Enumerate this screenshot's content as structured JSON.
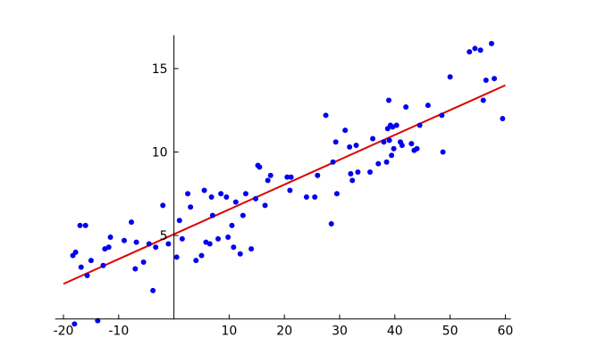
{
  "chart_data": {
    "type": "scatter",
    "title": "",
    "xlabel": "",
    "ylabel": "",
    "xlim": [
      -21.5,
      61
    ],
    "ylim": [
      0,
      17
    ],
    "grid": false,
    "legend": "none",
    "x_ticks": [
      -20,
      -10,
      10,
      20,
      30,
      40,
      50,
      60
    ],
    "x_tick_labels": [
      "-20",
      "-10",
      "10",
      "20",
      "30",
      "40",
      "50",
      "60"
    ],
    "y_ticks": [
      5,
      10,
      15
    ],
    "y_tick_labels": [
      "5",
      "10",
      "15"
    ],
    "colors": {
      "points": "#0000ee",
      "fit_line": "#dd0000",
      "axes": "#000000"
    },
    "fit_line": {
      "x": [
        -20,
        60
      ],
      "y": [
        2.1,
        14.0
      ]
    },
    "points": [
      [
        -18.3,
        3.8
      ],
      [
        -17.8,
        4.0
      ],
      [
        -17.0,
        5.6
      ],
      [
        -16.8,
        3.1
      ],
      [
        -16.0,
        5.6
      ],
      [
        -15.7,
        2.6
      ],
      [
        -15.0,
        3.5
      ],
      [
        -13.8,
        -0.1
      ],
      [
        -18.0,
        -0.3
      ],
      [
        -12.8,
        3.2
      ],
      [
        -12.5,
        4.2
      ],
      [
        -11.8,
        4.3
      ],
      [
        -11.5,
        4.9
      ],
      [
        -9.0,
        4.7
      ],
      [
        -7.7,
        5.8
      ],
      [
        -7.0,
        3.0
      ],
      [
        -6.8,
        4.6
      ],
      [
        -5.5,
        3.4
      ],
      [
        -4.5,
        4.5
      ],
      [
        -3.8,
        1.7
      ],
      [
        -3.3,
        4.3
      ],
      [
        -2.0,
        6.8
      ],
      [
        -1.0,
        4.5
      ],
      [
        0.5,
        3.7
      ],
      [
        1.0,
        5.9
      ],
      [
        1.5,
        4.8
      ],
      [
        2.5,
        7.5
      ],
      [
        3.0,
        6.7
      ],
      [
        4.0,
        3.5
      ],
      [
        5.0,
        3.8
      ],
      [
        5.5,
        7.7
      ],
      [
        5.8,
        4.6
      ],
      [
        6.5,
        4.5
      ],
      [
        6.8,
        7.3
      ],
      [
        7.0,
        6.2
      ],
      [
        8.0,
        4.8
      ],
      [
        8.5,
        7.5
      ],
      [
        9.5,
        7.3
      ],
      [
        9.8,
        4.9
      ],
      [
        10.5,
        5.6
      ],
      [
        10.8,
        4.3
      ],
      [
        11.2,
        7.0
      ],
      [
        12.0,
        3.9
      ],
      [
        12.5,
        6.2
      ],
      [
        13.0,
        7.5
      ],
      [
        14.0,
        4.2
      ],
      [
        14.8,
        7.2
      ],
      [
        15.2,
        9.2
      ],
      [
        15.5,
        9.1
      ],
      [
        16.5,
        6.8
      ],
      [
        17.0,
        8.3
      ],
      [
        17.5,
        8.6
      ],
      [
        20.5,
        8.5
      ],
      [
        21.0,
        7.7
      ],
      [
        21.2,
        8.5
      ],
      [
        24.0,
        7.3
      ],
      [
        25.5,
        7.3
      ],
      [
        26.0,
        8.6
      ],
      [
        27.5,
        12.2
      ],
      [
        28.5,
        5.7
      ],
      [
        28.8,
        9.4
      ],
      [
        29.3,
        10.6
      ],
      [
        29.5,
        7.5
      ],
      [
        31.0,
        11.3
      ],
      [
        31.8,
        10.3
      ],
      [
        32.0,
        8.7
      ],
      [
        32.3,
        8.3
      ],
      [
        33.0,
        10.4
      ],
      [
        33.3,
        8.8
      ],
      [
        35.5,
        8.8
      ],
      [
        36.0,
        10.8
      ],
      [
        37.0,
        9.3
      ],
      [
        38.0,
        10.6
      ],
      [
        38.5,
        9.4
      ],
      [
        38.7,
        11.4
      ],
      [
        38.9,
        13.1
      ],
      [
        39.0,
        10.7
      ],
      [
        39.2,
        11.6
      ],
      [
        39.4,
        9.8
      ],
      [
        39.6,
        11.5
      ],
      [
        39.8,
        10.2
      ],
      [
        40.3,
        11.6
      ],
      [
        41.0,
        10.6
      ],
      [
        41.3,
        10.4
      ],
      [
        42.0,
        12.7
      ],
      [
        43.0,
        10.5
      ],
      [
        43.5,
        10.1
      ],
      [
        44.0,
        10.2
      ],
      [
        44.5,
        11.6
      ],
      [
        46.0,
        12.8
      ],
      [
        48.5,
        12.2
      ],
      [
        48.7,
        10.0
      ],
      [
        50.0,
        14.5
      ],
      [
        53.5,
        16.0
      ],
      [
        54.5,
        16.2
      ],
      [
        55.5,
        16.1
      ],
      [
        56.0,
        13.1
      ],
      [
        56.5,
        14.3
      ],
      [
        57.5,
        16.5
      ],
      [
        58.0,
        14.4
      ],
      [
        59.5,
        12.0
      ]
    ]
  }
}
